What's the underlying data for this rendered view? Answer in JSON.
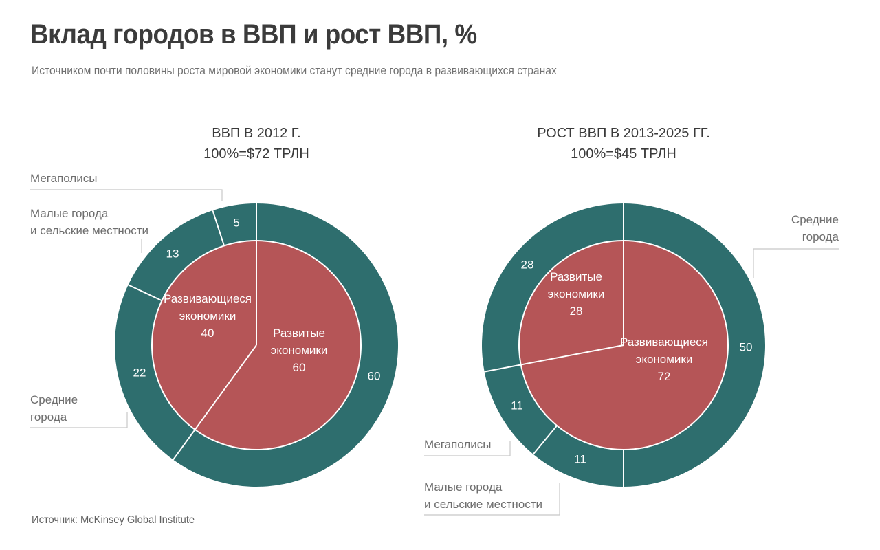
{
  "title": "Вклад городов в ВВП и рост ВВП, %",
  "subtitle": "Источником почти половины роста мировой экономики станут средние города в развивающихся странах",
  "source": "Источник: McKinsey Global Institute",
  "colors": {
    "outer_ring": "#2e6e6e",
    "inner_pie": "#b55557",
    "divider": "#ffffff",
    "leader": "#c8c8c8"
  },
  "chart_data": [
    {
      "type": "pie",
      "title_lines": [
        "ВВП В 2012 Г.",
        "100%=$72 ТРЛН"
      ],
      "inner": [
        {
          "label_lines": [
            "Развитые",
            "экономики"
          ],
          "value": 60
        },
        {
          "label_lines": [
            "Развивающиеся",
            "экономики"
          ],
          "value": 40
        }
      ],
      "outer": [
        {
          "name": "",
          "value": 60
        },
        {
          "name": "Средние города",
          "value": 22
        },
        {
          "name": "Малые города и сельские местности",
          "value": 13
        },
        {
          "name": "Мегаполисы",
          "value": 5
        }
      ],
      "outer_labels": [
        {
          "lines": [
            "Мегаполисы"
          ]
        },
        {
          "lines": [
            "Малые города",
            "и сельские местности"
          ]
        },
        {
          "lines": [
            "Средние",
            "города"
          ]
        }
      ]
    },
    {
      "type": "pie",
      "title_lines": [
        "РОСТ ВВП В 2013-2025 ГГ.",
        "100%=$45 ТРЛН"
      ],
      "inner": [
        {
          "label_lines": [
            "Развивающиеся",
            "экономики"
          ],
          "value": 72
        },
        {
          "label_lines": [
            "Развитые",
            "экономики"
          ],
          "value": 28
        }
      ],
      "outer": [
        {
          "name": "Средние города",
          "value": 50
        },
        {
          "name": "Малые города и сельские местности",
          "value": 11
        },
        {
          "name": "Мегаполисы",
          "value": 11
        },
        {
          "name": "",
          "value": 28
        }
      ],
      "outer_labels": [
        {
          "lines": [
            "Средние",
            "города"
          ]
        },
        {
          "lines": [
            "Мегаполисы"
          ]
        },
        {
          "lines": [
            "Малые города",
            "и сельские местности"
          ]
        }
      ]
    }
  ]
}
